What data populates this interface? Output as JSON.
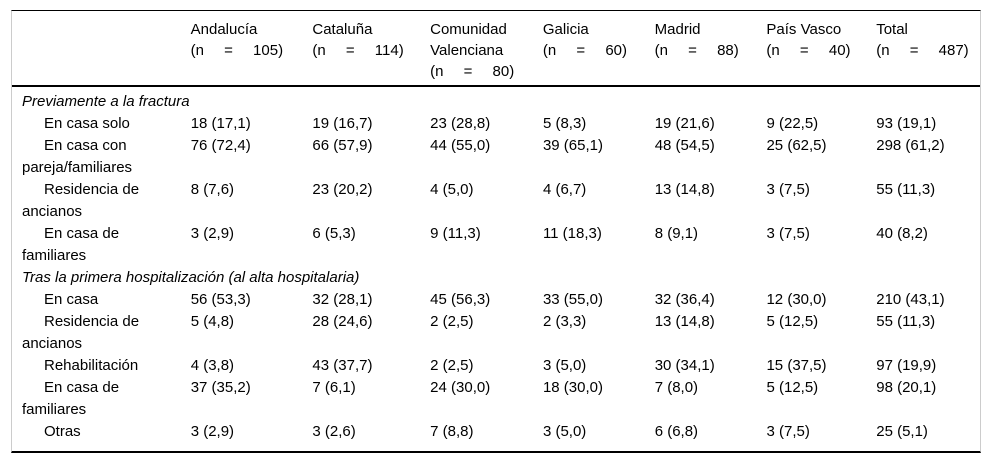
{
  "table": {
    "columns": [
      {
        "name": "Andalucía",
        "n": "(n = 105)"
      },
      {
        "name": "Cataluña",
        "n": "(n = 114)"
      },
      {
        "name": "Comunidad Valenciana",
        "n": "(n = 80)"
      },
      {
        "name": "Galicia",
        "n": "(n = 60)"
      },
      {
        "name": "Madrid",
        "n": "(n = 88)"
      },
      {
        "name": "País Vasco",
        "n": "(n = 40)"
      },
      {
        "name": "Total",
        "n": "(n = 487)"
      }
    ],
    "sections": [
      {
        "title": "Previamente a la fractura",
        "rows": [
          {
            "label": "En casa solo",
            "values": [
              "18 (17,1)",
              "19 (16,7)",
              "23 (28,8)",
              "5 (8,3)",
              "19 (21,6)",
              "9 (22,5)",
              "93 (19,1)"
            ]
          },
          {
            "label": "En casa con pareja/familiares",
            "values": [
              "76 (72,4)",
              "66 (57,9)",
              "44 (55,0)",
              "39 (65,1)",
              "48 (54,5)",
              "25 (62,5)",
              "298 (61,2)"
            ]
          },
          {
            "label": "Residencia de ancianos",
            "values": [
              "8 (7,6)",
              "23 (20,2)",
              "4 (5,0)",
              "4 (6,7)",
              "13 (14,8)",
              "3 (7,5)",
              "55 (11,3)"
            ]
          },
          {
            "label": "En casa de familiares",
            "values": [
              "3 (2,9)",
              "6 (5,3)",
              "9 (11,3)",
              "11 (18,3)",
              "8 (9,1)",
              "3 (7,5)",
              "40 (8,2)"
            ]
          }
        ]
      },
      {
        "title": "Tras la primera hospitalización (al alta hospitalaria)",
        "rows": [
          {
            "label": "En casa",
            "values": [
              "56 (53,3)",
              "32 (28,1)",
              "45 (56,3)",
              "33 (55,0)",
              "32 (36,4)",
              "12 (30,0)",
              "210 (43,1)"
            ]
          },
          {
            "label": "Residencia de ancianos",
            "values": [
              "5 (4,8)",
              "28 (24,6)",
              "2 (2,5)",
              "2 (3,3)",
              "13 (14,8)",
              "5 (12,5)",
              "55 (11,3)"
            ]
          },
          {
            "label": "Rehabilitación",
            "values": [
              "4 (3,8)",
              "43 (37,7)",
              "2 (2,5)",
              "3 (5,0)",
              "30 (34,1)",
              "15 (37,5)",
              "97 (19,9)"
            ]
          },
          {
            "label": "En casa de familiares",
            "values": [
              "37 (35,2)",
              "7 (6,1)",
              "24 (30,0)",
              "18 (30,0)",
              "7 (8,0)",
              "5 (12,5)",
              "98 (20,1)"
            ]
          },
          {
            "label": "Otras",
            "values": [
              "3 (2,9)",
              "3 (2,6)",
              "7 (8,8)",
              "3 (5,0)",
              "6 (6,8)",
              "3 (7,5)",
              "25 (5,1)"
            ]
          }
        ]
      }
    ]
  }
}
